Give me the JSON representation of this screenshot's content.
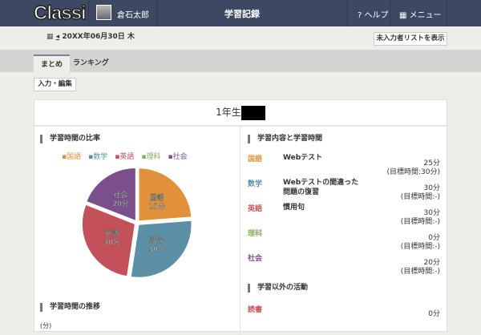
{
  "header": {
    "logo": "Classi",
    "user_name": "倉石太郎",
    "title": "学習記録",
    "help": "? ヘルプ",
    "menu": "メニュー"
  },
  "date": {
    "prev": "◂",
    "label": "20XX年06月30日 木"
  },
  "list_button": "未入力者リストを表示",
  "tabs": [
    {
      "label": "まとめ",
      "active": true
    },
    {
      "label": "ランキング",
      "active": false
    }
  ],
  "edit_button": "入力・編集",
  "card": {
    "title": "1年生",
    "ratio_heading": "学習時間の比率",
    "trend_heading": "学習時間の推移",
    "trend_unit": "(分)",
    "content_heading": "学習内容と学習時間",
    "other_heading": "学習以外の活動"
  },
  "chart_data": {
    "type": "pie",
    "legend_placement": "top",
    "slices": [
      {
        "name": "国語",
        "value": 25,
        "label": "25分",
        "color": "#e0913a"
      },
      {
        "name": "数学",
        "value": 30,
        "label": "30分",
        "color": "#5a8fa6"
      },
      {
        "name": "英語",
        "value": 30,
        "label": "30分",
        "color": "#c4505a"
      },
      {
        "name": "理科",
        "value": 0,
        "label": "0分",
        "color": "#8aac5c"
      },
      {
        "name": "社会",
        "value": 20,
        "label": "20分",
        "color": "#7a4f8c"
      }
    ]
  },
  "subjects": [
    {
      "name": "国語",
      "color": "#e0913a",
      "content": "Webテスト",
      "time": "25分",
      "target": "(目標時間:30分)"
    },
    {
      "name": "数学",
      "color": "#5a8fa6",
      "content": "Webテストの間違った問題の復習",
      "time": "30分",
      "target": "(目標時間:-)"
    },
    {
      "name": "英語",
      "color": "#c4505a",
      "content": "慣用句",
      "time": "30分",
      "target": "(目標時間:-)"
    },
    {
      "name": "理科",
      "color": "#8aac5c",
      "content": "",
      "time": "0分",
      "target": "(目標時間:-)"
    },
    {
      "name": "社会",
      "color": "#7a4f8c",
      "content": "",
      "time": "20分",
      "target": "(目標時間:-)"
    }
  ],
  "other": [
    {
      "name": "読書",
      "color": "#c4505a",
      "time": "0分"
    }
  ]
}
